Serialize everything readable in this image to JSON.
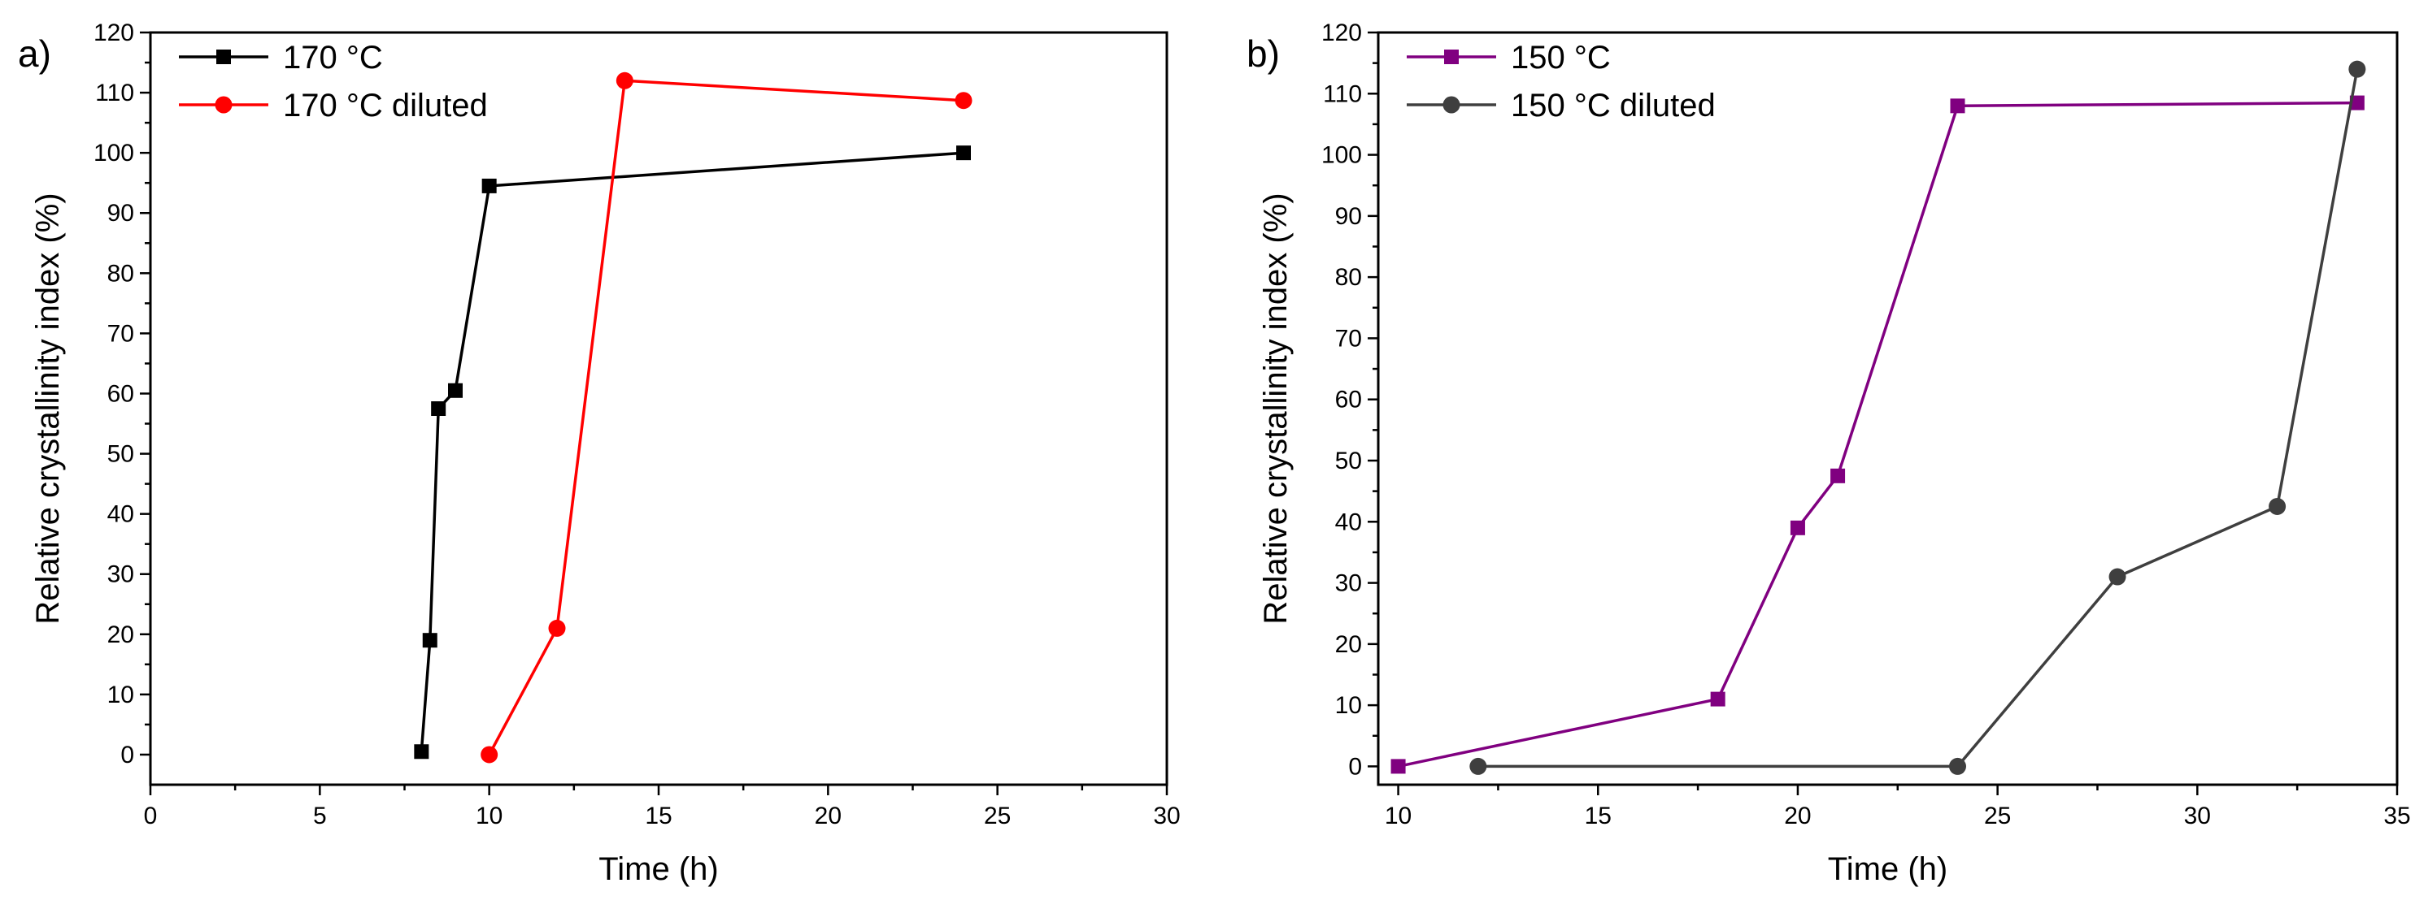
{
  "chart_data": [
    {
      "type": "line",
      "panel_label": "a)",
      "xlabel": "Time (h)",
      "ylabel": "Relative crystallinity index (%)",
      "xlim": [
        0,
        30
      ],
      "ylim": [
        -5,
        120
      ],
      "xticks": [
        0,
        5,
        10,
        15,
        20,
        25,
        30
      ],
      "yticks": [
        0,
        10,
        20,
        30,
        40,
        50,
        60,
        70,
        80,
        90,
        100,
        110,
        120
      ],
      "legend_position": "top-left",
      "series": [
        {
          "name": "170 °C",
          "color": "#000000",
          "marker": "square",
          "x": [
            8,
            8.25,
            8.5,
            9,
            10,
            24
          ],
          "y": [
            0.5,
            19,
            57.5,
            60.5,
            94.5,
            100
          ]
        },
        {
          "name": "170 °C diluted",
          "color": "#ff0000",
          "marker": "circle",
          "x": [
            10,
            12,
            14,
            24
          ],
          "y": [
            0,
            21,
            112,
            108.7
          ]
        }
      ]
    },
    {
      "type": "line",
      "panel_label": "b)",
      "xlabel": "Time (h)",
      "ylabel": "Relative crystallinity index (%)",
      "xlim": [
        9.5,
        35
      ],
      "ylim": [
        -3,
        120
      ],
      "xticks": [
        10,
        15,
        20,
        25,
        30,
        35
      ],
      "yticks": [
        0,
        10,
        20,
        30,
        40,
        50,
        60,
        70,
        80,
        90,
        100,
        110,
        120
      ],
      "legend_position": "top-left",
      "series": [
        {
          "name": "150 °C",
          "color": "#800080",
          "marker": "square",
          "x": [
            10,
            18,
            20,
            21,
            24,
            34
          ],
          "y": [
            0,
            11,
            39,
            47.5,
            108,
            108.5
          ]
        },
        {
          "name": "150 °C diluted",
          "color": "#3f3f3f",
          "marker": "circle",
          "x": [
            12,
            24,
            28,
            32,
            34
          ],
          "y": [
            0,
            0,
            31,
            42.5,
            114
          ]
        }
      ]
    }
  ]
}
